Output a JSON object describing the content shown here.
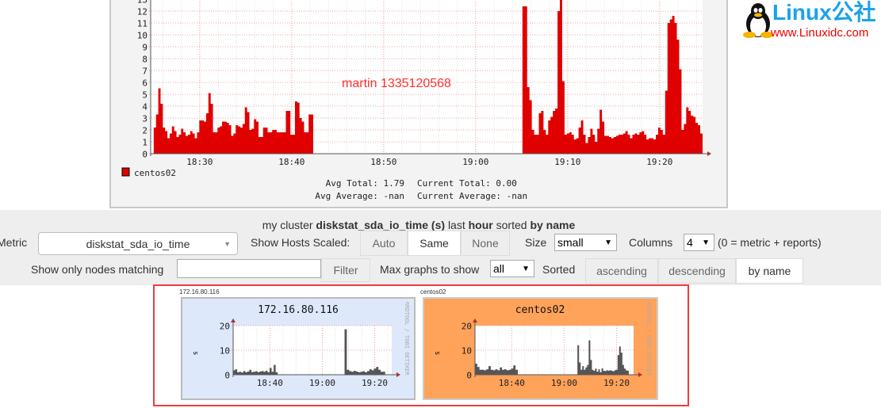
{
  "main_graph": {
    "watermark": "martin 1335120568",
    "legend": {
      "name": "centos02",
      "color": "#e00000"
    },
    "stats": {
      "avg_total": "Avg Total:  1.79",
      "current_total": "Current Total:  0.00",
      "avg_average": "Avg Average:  -nan",
      "current_average": "Current Average:  -nan"
    }
  },
  "logo": {
    "text": "Linux公社",
    "url_text": "www.Linuxidc.com"
  },
  "controls": {
    "summary": {
      "prefix": "my cluster",
      "metric": "diskstat_sda_io_time (s)",
      "mid": "last",
      "range": "hour",
      "mid2": "sorted",
      "sort": "by name"
    },
    "metric_label": "Metric",
    "metric_value": "diskstat_sda_io_time",
    "scaled_label": "Show Hosts Scaled:",
    "scaled_options": [
      "Auto",
      "Same",
      "None"
    ],
    "scaled_selected": "Same",
    "size_label": "Size",
    "size_value": "small",
    "columns_label": "Columns",
    "columns_value": "4",
    "columns_note": "(0 = metric + reports)",
    "filter_label": "Show only nodes matching",
    "filter_value": "",
    "filter_button": "Filter",
    "max_label": "Max graphs to show",
    "max_value": "all",
    "sorted_label": "Sorted",
    "sort_options": [
      "ascending",
      "descending",
      "by name"
    ],
    "sort_selected": "by name"
  },
  "hosts": [
    {
      "caption": "172.16.80.116",
      "title": "172.16.80.116",
      "ylabel": "s",
      "bg": "#dde8fb",
      "side": "RRDTOOL / TOBI OETIKER"
    },
    {
      "caption": "centos02",
      "title": "centos02",
      "ylabel": "s",
      "bg": "#ffa25a",
      "side": "RRDTOOL / TOBI OETIKER"
    }
  ],
  "chart_data": [
    {
      "type": "area",
      "series_name": "centos02",
      "color": "#e00000",
      "ylim": [
        0,
        13
      ],
      "yticks": [
        0,
        1,
        2,
        3,
        4,
        5,
        6,
        7,
        8,
        9,
        10,
        11,
        12,
        13
      ],
      "xticks": [
        "18:30",
        "18:40",
        "18:50",
        "19:00",
        "19:10",
        "19:20"
      ],
      "xrange": [
        "18:24:40",
        "19:24:40"
      ],
      "segments": [
        {
          "start": "18:25:00",
          "end": "18:42:20",
          "values": [
            2.2,
            3.3,
            5.5,
            4.2,
            2.2,
            1.9,
            1.3,
            1.7,
            2.3,
            1.9,
            1.4,
            1.6,
            2.1,
            1.8,
            1.5,
            1.6,
            1.9,
            1.7,
            1.3,
            1.8,
            2.8,
            2.8,
            2.7,
            3.4,
            5.1,
            4.2,
            1.8,
            1.8,
            2.2,
            2.3,
            2.7,
            2.7,
            2.6,
            2.4,
            1.5,
            1.7,
            2.4,
            2.3,
            2.2,
            2.5,
            3.9,
            3.5,
            2.0,
            2.1,
            2.9,
            2.7,
            1.4,
            1.4,
            2.2,
            2.2,
            1.8,
            1.8,
            2.0,
            2.0,
            1.8,
            1.8,
            1.8,
            1.8,
            3.6,
            3.6,
            1.6,
            1.6,
            4.4,
            4.3,
            3.0,
            2.7,
            1.8,
            1.8,
            3.3,
            3.3
          ]
        },
        {
          "start": "19:05:05",
          "end": "19:24:40",
          "values": [
            12.4,
            12.4,
            5.6,
            4.5,
            2.0,
            1.6,
            1.6,
            3.4,
            3.6,
            2.0,
            1.6,
            2.8,
            3.1,
            3.6,
            3.8,
            12.0,
            13.5,
            6.1,
            1.6,
            1.7,
            1.8,
            1.6,
            1.2,
            1.3,
            2.2,
            2.8,
            1.6,
            0.9,
            1.4,
            2.1,
            1.6,
            1.0,
            2.1,
            3.7,
            2.7,
            1.5,
            1.5,
            1.4,
            1.3,
            1.4,
            1.5,
            1.6,
            1.6,
            1.7,
            1.9,
            1.6,
            1.3,
            1.6,
            1.7,
            1.6,
            1.8,
            1.9,
            1.6,
            1.2,
            1.3,
            1.3,
            1.2,
            1.6,
            2.2,
            2.0,
            1.6,
            5.3,
            11.0,
            11.3,
            11.6,
            11.0,
            9.6,
            7.1,
            2.0,
            2.5,
            3.9,
            3.6,
            3.2,
            3.1,
            2.6,
            2.4,
            1.7
          ]
        }
      ]
    },
    {
      "type": "area",
      "host": "172.16.80.116",
      "color": "#555555",
      "ylim": [
        0,
        20
      ],
      "yticks": [
        0,
        10,
        20
      ],
      "xticks": [
        "18:40",
        "19:00",
        "19:20"
      ],
      "xrange": [
        "18:26:00",
        "19:26:30"
      ],
      "segments": [
        {
          "start": "18:26:00",
          "end": "18:43:00",
          "values": [
            1.8,
            2.2,
            1.0,
            1.2,
            0.9,
            1.5,
            1.0,
            1.3,
            2.0,
            1.1,
            1.2,
            1.4,
            1.0,
            1.3,
            1.5,
            1.2,
            1.6,
            1.0,
            2.8,
            1.2,
            4.0,
            1.0
          ]
        },
        {
          "start": "19:08:30",
          "end": "19:24:00",
          "values": [
            18.5,
            2.0,
            1.5,
            1.2,
            1.6,
            1.3,
            1.0,
            1.2,
            1.4,
            1.0,
            1.5,
            2.2,
            1.8,
            2.5,
            3.2,
            2.0,
            1.2,
            1.2
          ]
        }
      ]
    },
    {
      "type": "area",
      "host": "centos02",
      "color": "#555555",
      "ylim": [
        0,
        20
      ],
      "yticks": [
        0,
        10,
        20
      ],
      "xticks": [
        "18:40",
        "19:00",
        "19:20"
      ],
      "xrange": [
        "18:26:00",
        "19:26:30"
      ],
      "segments": [
        {
          "start": "18:26:00",
          "end": "18:42:20",
          "values": [
            4.5,
            3.2,
            2.0,
            2.0,
            1.8,
            2.2,
            3.5,
            2.0,
            1.8,
            2.2,
            1.8,
            3.0,
            2.0,
            2.2,
            1.8,
            2.0,
            2.5,
            3.8,
            2.0
          ]
        },
        {
          "start": "19:05:05",
          "end": "19:24:40",
          "values": [
            12.0,
            5.0,
            2.0,
            3.5,
            2.0,
            3.0,
            4.0,
            14.0,
            6.0,
            2.0,
            1.6,
            2.5,
            1.2,
            2.2,
            1.0,
            2.6,
            1.6,
            1.5,
            1.8,
            1.6,
            1.8,
            1.6,
            1.4,
            1.8,
            2.0,
            8.0,
            11.5,
            9.0,
            4.0,
            2.5,
            1.8,
            1.6
          ]
        }
      ]
    }
  ]
}
